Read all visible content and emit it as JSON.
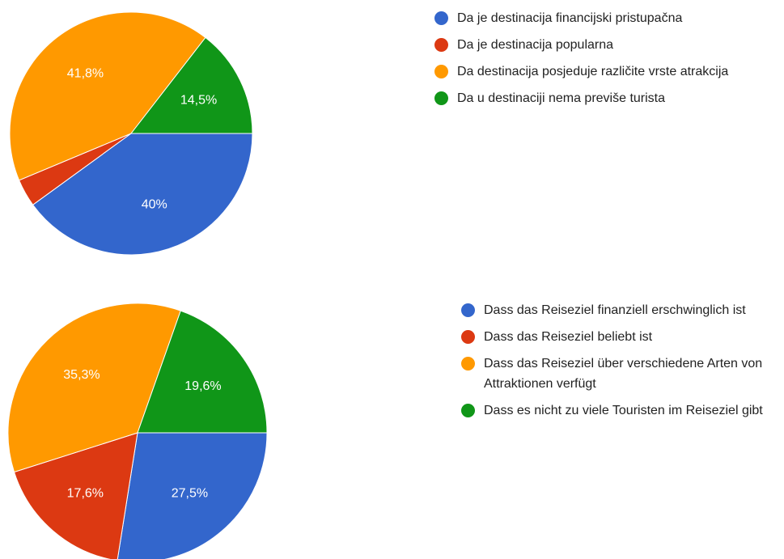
{
  "chart_data": [
    {
      "type": "pie",
      "categories": [
        "Da je destinacija financijski pristupačna",
        "Da je destinacija popularna",
        "Da destinacija posjeduje različite vrste atrakcija",
        "Da u destinaciji nema previše turista"
      ],
      "values": [
        40,
        3.7,
        41.8,
        14.5
      ],
      "value_labels": [
        "40%",
        null,
        "41,8%",
        "14,5%"
      ],
      "colors": [
        "#3366cc",
        "#dc3912",
        "#ff9900",
        "#109618"
      ]
    },
    {
      "type": "pie",
      "categories": [
        "Dass das Reiseziel finanziell erschwinglich ist",
        "Dass das Reiseziel beliebt ist",
        "Dass das Reiseziel über verschiedene Arten von Attraktionen verfügt",
        "Dass es nicht zu viele Touristen im Reiseziel gibt"
      ],
      "values": [
        27.5,
        17.6,
        35.3,
        19.6
      ],
      "value_labels": [
        "27,5%",
        "17,6%",
        "35,3%",
        "19,6%"
      ],
      "colors": [
        "#3366cc",
        "#dc3912",
        "#ff9900",
        "#109618"
      ]
    }
  ]
}
